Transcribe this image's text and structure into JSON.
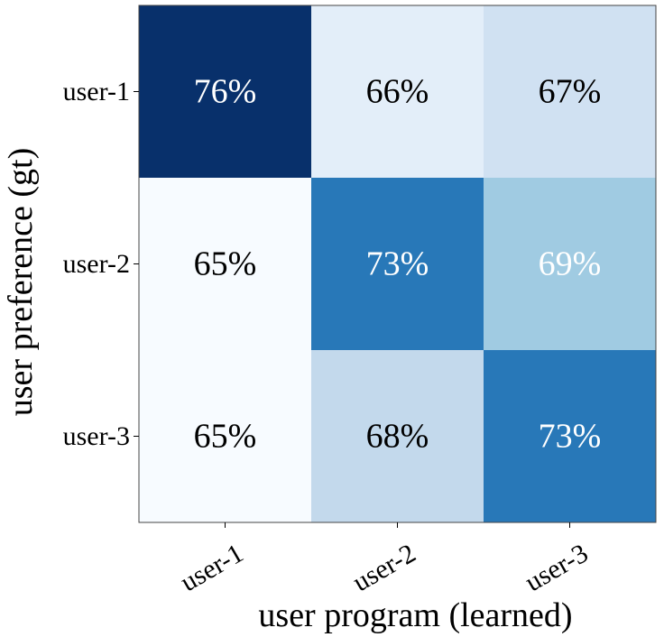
{
  "chart_data": {
    "type": "heatmap",
    "title": "",
    "xlabel": "user program (learned)",
    "ylabel": "user preference (gt)",
    "x_categories": [
      "user-1",
      "user-2",
      "user-3"
    ],
    "y_categories": [
      "user-1",
      "user-2",
      "user-3"
    ],
    "values": [
      [
        76,
        66,
        67
      ],
      [
        65,
        73,
        69
      ],
      [
        65,
        68,
        73
      ]
    ],
    "cell_labels": [
      [
        "76%",
        "66%",
        "67%"
      ],
      [
        "65%",
        "73%",
        "69%"
      ],
      [
        "65%",
        "68%",
        "73%"
      ]
    ],
    "colormap": "Blues",
    "colors": {
      "cells": [
        [
          "#08306b",
          "#e3eef9",
          "#d0e1f2"
        ],
        [
          "#f7fbff",
          "#2878b8",
          "#a0cbe2"
        ],
        [
          "#f7fbff",
          "#c3d9ec",
          "#2878b8"
        ]
      ],
      "label_text": [
        [
          "#ffffff",
          "#000000",
          "#000000"
        ],
        [
          "#000000",
          "#ffffff",
          "#ffffff"
        ],
        [
          "#000000",
          "#000000",
          "#ffffff"
        ]
      ]
    }
  }
}
